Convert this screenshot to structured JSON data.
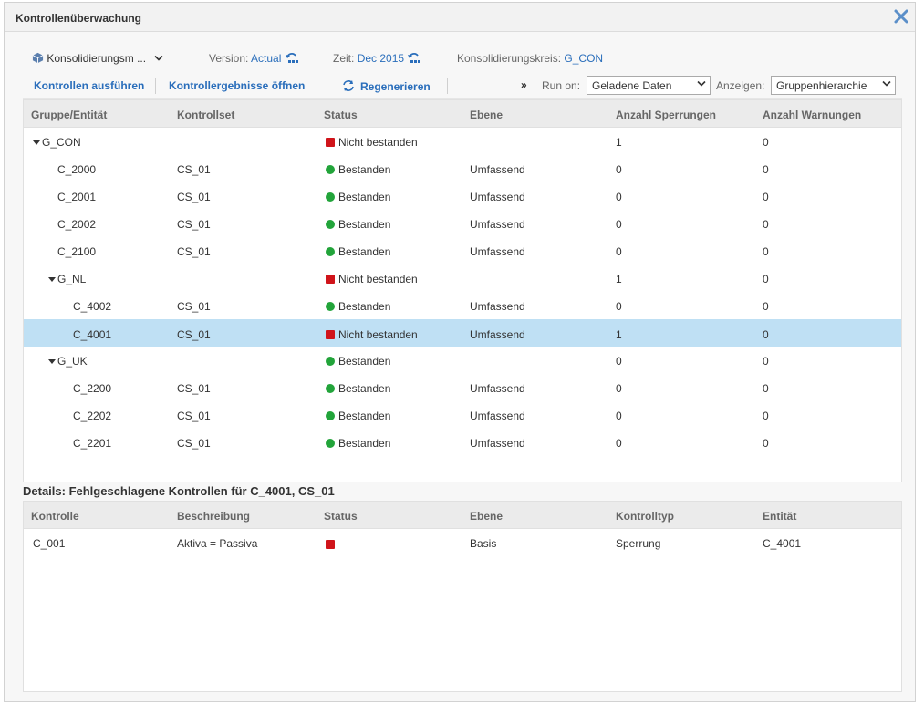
{
  "dialog": {
    "title": "Kontrollenüberwachung"
  },
  "context": {
    "dimension": "Konsolidierungsm ...",
    "version_label": "Version:",
    "version_value": "Actual",
    "time_label": "Zeit:",
    "time_value": "Dec 2015",
    "scope_label": "Konsolidierungskreis:",
    "scope_value": "G_CON"
  },
  "toolbar": {
    "run_controls": "Kontrollen ausführen",
    "open_results": "Kontrollergebnisse öffnen",
    "regenerate": "Regenerieren",
    "expand": "»",
    "run_on_label": "Run on:",
    "run_on_value": "Geladene Daten",
    "show_label": "Anzeigen:",
    "show_value": "Gruppenhierarchie"
  },
  "monitor_table": {
    "columns": [
      "Gruppe/Entität",
      "Kontrollset",
      "Status",
      "Ebene",
      "Anzahl Sperrungen",
      "Anzahl Warnungen"
    ],
    "rows": [
      {
        "entity": "G_CON",
        "set": "",
        "status": "Nicht bestanden",
        "level": "",
        "blocks": "1",
        "warnings": "0"
      },
      {
        "entity": "C_2000",
        "set": "CS_01",
        "status": "Bestanden",
        "level": "Umfassend",
        "blocks": "0",
        "warnings": "0"
      },
      {
        "entity": "C_2001",
        "set": "CS_01",
        "status": "Bestanden",
        "level": "Umfassend",
        "blocks": "0",
        "warnings": "0"
      },
      {
        "entity": "C_2002",
        "set": "CS_01",
        "status": "Bestanden",
        "level": "Umfassend",
        "blocks": "0",
        "warnings": "0"
      },
      {
        "entity": "C_2100",
        "set": "CS_01",
        "status": "Bestanden",
        "level": "Umfassend",
        "blocks": "0",
        "warnings": "0"
      },
      {
        "entity": "G_NL",
        "set": "",
        "status": "Nicht bestanden",
        "level": "",
        "blocks": "1",
        "warnings": "0"
      },
      {
        "entity": "C_4002",
        "set": "CS_01",
        "status": "Bestanden",
        "level": "Umfassend",
        "blocks": "0",
        "warnings": "0"
      },
      {
        "entity": "C_4001",
        "set": "CS_01",
        "status": "Nicht bestanden",
        "level": "Umfassend",
        "blocks": "1",
        "warnings": "0"
      },
      {
        "entity": "G_UK",
        "set": "",
        "status": "Bestanden",
        "level": "",
        "blocks": "0",
        "warnings": "0"
      },
      {
        "entity": "C_2200",
        "set": "CS_01",
        "status": "Bestanden",
        "level": "Umfassend",
        "blocks": "0",
        "warnings": "0"
      },
      {
        "entity": "C_2202",
        "set": "CS_01",
        "status": "Bestanden",
        "level": "Umfassend",
        "blocks": "0",
        "warnings": "0"
      },
      {
        "entity": "C_2201",
        "set": "CS_01",
        "status": "Bestanden",
        "level": "Umfassend",
        "blocks": "0",
        "warnings": "0"
      }
    ]
  },
  "details": {
    "title": "Details: Fehlgeschlagene Kontrollen für C_4001, CS_01",
    "columns": [
      "Kontrolle",
      "Beschreibung",
      "Status",
      "Ebene",
      "Kontrolltyp",
      "Entität"
    ],
    "rows": [
      {
        "control": "C_001",
        "description": "Aktiva = Passiva",
        "status": "",
        "level": "Basis",
        "type": "Sperrung",
        "entity": "C_4001"
      }
    ]
  },
  "colors": {
    "accent": "#2a6ebb",
    "passed": "#22a43a",
    "failed": "#d0141a",
    "selected_row": "#bfe0f4"
  },
  "icons": {
    "close": "close-icon",
    "passed": "green-circle-icon",
    "failed": "red-square-icon",
    "regenerate": "refresh-icon"
  }
}
